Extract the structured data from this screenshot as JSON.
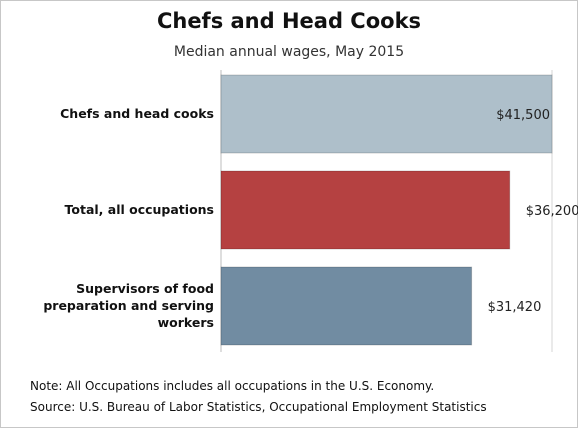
{
  "chart_data": {
    "type": "bar",
    "orientation": "horizontal",
    "title": "Chefs and Head Cooks",
    "subtitle": "Median annual wages, May 2015",
    "categories": [
      "Chefs and head cooks",
      "Total, all occupations",
      "Supervisors of food preparation and serving workers"
    ],
    "category_lines": [
      [
        "Chefs and head cooks"
      ],
      [
        "Total, all occupations"
      ],
      [
        "Supervisors of food",
        "preparation and serving",
        "workers"
      ]
    ],
    "values": [
      41500,
      36200,
      31420
    ],
    "value_labels": [
      "$41,500",
      "$36,200",
      "$31,420"
    ],
    "colors": [
      "#aebfca",
      "#b54141",
      "#718ca2"
    ],
    "xlim": [
      0,
      41500
    ],
    "grid": true,
    "legend": "none"
  },
  "notes": {
    "note": "Note: All Occupations includes all occupations in the U.S. Economy.",
    "source": "Source: U.S. Bureau of Labor Statistics, Occupational Employment Statistics"
  }
}
